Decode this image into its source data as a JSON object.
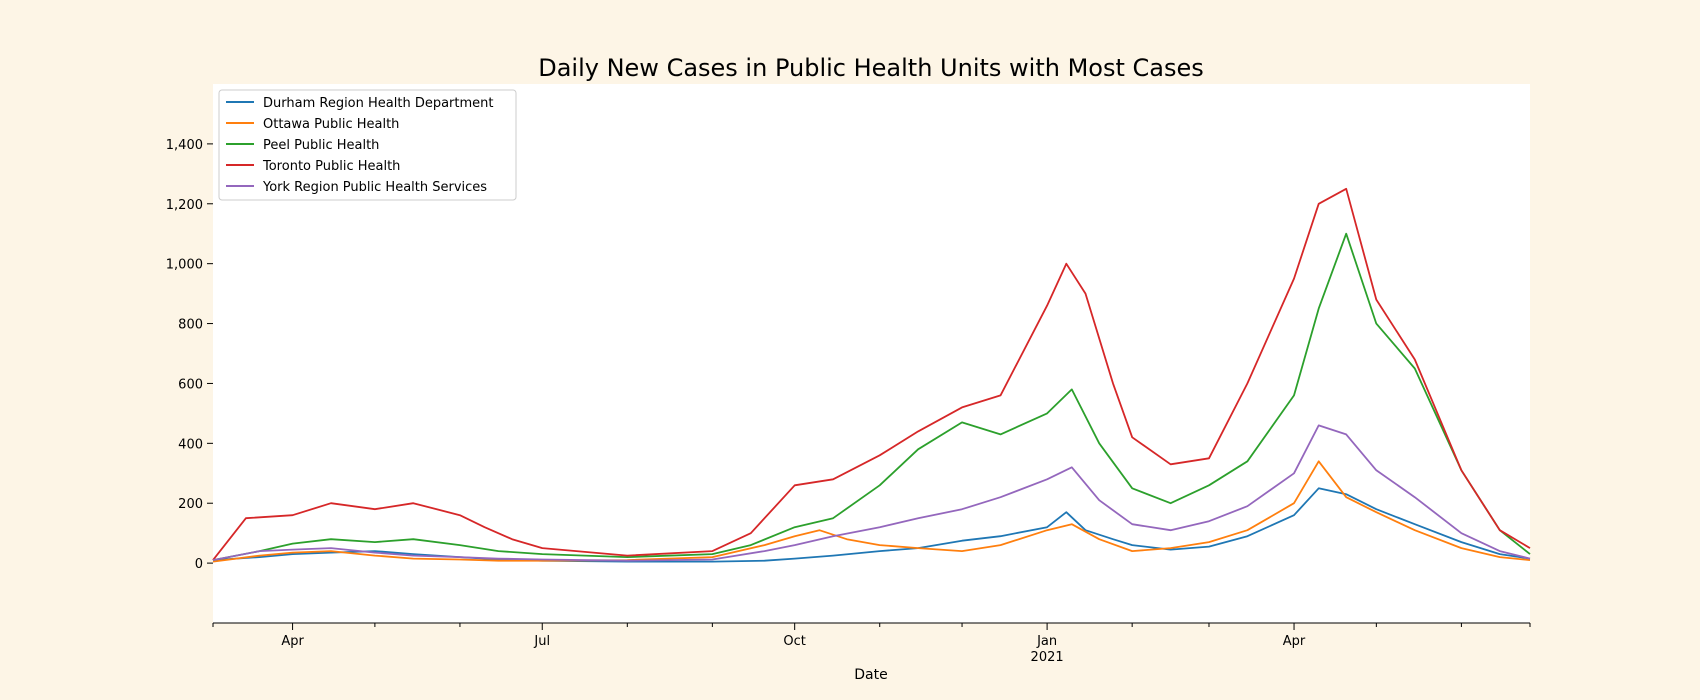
{
  "chart_data": {
    "type": "line",
    "title": "Daily New Cases in Public Health Units with Most Cases",
    "xlabel": "Date",
    "ylabel": "",
    "x_range": [
      "2020-03-03",
      "2021-06-26"
    ],
    "ylim": [
      -200,
      1600
    ],
    "yticks": [
      0,
      200,
      400,
      600,
      800,
      1000,
      1200,
      1400
    ],
    "ytick_labels": [
      "0",
      "200",
      "400",
      "600",
      "800",
      "1,000",
      "1,200",
      "1,400"
    ],
    "xticks_major": [
      {
        "date": "2020-04-01",
        "label": "Apr",
        "sublabel": ""
      },
      {
        "date": "2020-07-01",
        "label": "Jul",
        "sublabel": ""
      },
      {
        "date": "2020-10-01",
        "label": "Oct",
        "sublabel": ""
      },
      {
        "date": "2021-01-01",
        "label": "Jan",
        "sublabel": "2021"
      },
      {
        "date": "2021-04-01",
        "label": "Apr",
        "sublabel": ""
      }
    ],
    "xticks_minor": [
      "2020-03-03",
      "2020-05-01",
      "2020-06-01",
      "2020-08-01",
      "2020-09-01",
      "2020-11-01",
      "2020-12-01",
      "2021-02-01",
      "2021-03-01",
      "2021-05-01",
      "2021-06-01",
      "2021-06-26"
    ],
    "grid": false,
    "legend_position": "top-left",
    "series": [
      {
        "name": "Durham Region Health Department",
        "color": "#1f77b4",
        "points": [
          [
            "2020-03-03",
            10
          ],
          [
            "2020-03-20",
            20
          ],
          [
            "2020-04-01",
            30
          ],
          [
            "2020-04-15",
            35
          ],
          [
            "2020-05-01",
            40
          ],
          [
            "2020-05-15",
            30
          ],
          [
            "2020-06-01",
            20
          ],
          [
            "2020-06-15",
            12
          ],
          [
            "2020-07-01",
            8
          ],
          [
            "2020-08-01",
            5
          ],
          [
            "2020-09-01",
            5
          ],
          [
            "2020-09-20",
            8
          ],
          [
            "2020-10-01",
            15
          ],
          [
            "2020-10-15",
            25
          ],
          [
            "2020-11-01",
            40
          ],
          [
            "2020-11-15",
            50
          ],
          [
            "2020-12-01",
            75
          ],
          [
            "2020-12-15",
            90
          ],
          [
            "2021-01-01",
            120
          ],
          [
            "2021-01-08",
            170
          ],
          [
            "2021-01-15",
            110
          ],
          [
            "2021-01-25",
            80
          ],
          [
            "2021-02-01",
            60
          ],
          [
            "2021-02-15",
            45
          ],
          [
            "2021-03-01",
            55
          ],
          [
            "2021-03-15",
            90
          ],
          [
            "2021-04-01",
            160
          ],
          [
            "2021-04-10",
            250
          ],
          [
            "2021-04-20",
            230
          ],
          [
            "2021-05-01",
            180
          ],
          [
            "2021-05-15",
            130
          ],
          [
            "2021-06-01",
            70
          ],
          [
            "2021-06-15",
            30
          ],
          [
            "2021-06-26",
            15
          ]
        ]
      },
      {
        "name": "Ottawa Public Health",
        "color": "#ff7f0e",
        "points": [
          [
            "2020-03-03",
            5
          ],
          [
            "2020-03-20",
            25
          ],
          [
            "2020-04-01",
            35
          ],
          [
            "2020-04-15",
            40
          ],
          [
            "2020-05-01",
            25
          ],
          [
            "2020-05-15",
            15
          ],
          [
            "2020-06-01",
            12
          ],
          [
            "2020-06-15",
            8
          ],
          [
            "2020-07-01",
            8
          ],
          [
            "2020-08-01",
            10
          ],
          [
            "2020-09-01",
            20
          ],
          [
            "2020-09-20",
            60
          ],
          [
            "2020-10-01",
            90
          ],
          [
            "2020-10-10",
            110
          ],
          [
            "2020-10-20",
            80
          ],
          [
            "2020-11-01",
            60
          ],
          [
            "2020-11-15",
            50
          ],
          [
            "2020-12-01",
            40
          ],
          [
            "2020-12-15",
            60
          ],
          [
            "2021-01-01",
            110
          ],
          [
            "2021-01-10",
            130
          ],
          [
            "2021-01-20",
            80
          ],
          [
            "2021-02-01",
            40
          ],
          [
            "2021-02-15",
            50
          ],
          [
            "2021-03-01",
            70
          ],
          [
            "2021-03-15",
            110
          ],
          [
            "2021-04-01",
            200
          ],
          [
            "2021-04-10",
            340
          ],
          [
            "2021-04-20",
            220
          ],
          [
            "2021-05-01",
            170
          ],
          [
            "2021-05-15",
            110
          ],
          [
            "2021-06-01",
            50
          ],
          [
            "2021-06-15",
            20
          ],
          [
            "2021-06-26",
            10
          ]
        ]
      },
      {
        "name": "Peel Public Health",
        "color": "#2ca02c",
        "points": [
          [
            "2020-03-03",
            10
          ],
          [
            "2020-03-20",
            40
          ],
          [
            "2020-04-01",
            65
          ],
          [
            "2020-04-15",
            80
          ],
          [
            "2020-05-01",
            70
          ],
          [
            "2020-05-15",
            80
          ],
          [
            "2020-06-01",
            60
          ],
          [
            "2020-06-15",
            40
          ],
          [
            "2020-07-01",
            30
          ],
          [
            "2020-08-01",
            20
          ],
          [
            "2020-09-01",
            30
          ],
          [
            "2020-09-15",
            60
          ],
          [
            "2020-10-01",
            120
          ],
          [
            "2020-10-15",
            150
          ],
          [
            "2020-11-01",
            260
          ],
          [
            "2020-11-15",
            380
          ],
          [
            "2020-12-01",
            470
          ],
          [
            "2020-12-15",
            430
          ],
          [
            "2021-01-01",
            500
          ],
          [
            "2021-01-10",
            580
          ],
          [
            "2021-01-20",
            400
          ],
          [
            "2021-02-01",
            250
          ],
          [
            "2021-02-15",
            200
          ],
          [
            "2021-03-01",
            260
          ],
          [
            "2021-03-15",
            340
          ],
          [
            "2021-04-01",
            560
          ],
          [
            "2021-04-10",
            850
          ],
          [
            "2021-04-20",
            1100
          ],
          [
            "2021-05-01",
            800
          ],
          [
            "2021-05-15",
            650
          ],
          [
            "2021-06-01",
            310
          ],
          [
            "2021-06-15",
            110
          ],
          [
            "2021-06-26",
            30
          ]
        ]
      },
      {
        "name": "Toronto Public Health",
        "color": "#d62728",
        "points": [
          [
            "2020-03-03",
            10
          ],
          [
            "2020-03-15",
            150
          ],
          [
            "2020-04-01",
            160
          ],
          [
            "2020-04-15",
            200
          ],
          [
            "2020-05-01",
            180
          ],
          [
            "2020-05-15",
            200
          ],
          [
            "2020-06-01",
            160
          ],
          [
            "2020-06-10",
            120
          ],
          [
            "2020-06-20",
            80
          ],
          [
            "2020-07-01",
            50
          ],
          [
            "2020-08-01",
            25
          ],
          [
            "2020-09-01",
            40
          ],
          [
            "2020-09-15",
            100
          ],
          [
            "2020-10-01",
            260
          ],
          [
            "2020-10-15",
            280
          ],
          [
            "2020-11-01",
            360
          ],
          [
            "2020-11-15",
            440
          ],
          [
            "2020-12-01",
            520
          ],
          [
            "2020-12-15",
            560
          ],
          [
            "2021-01-01",
            860
          ],
          [
            "2021-01-08",
            1000
          ],
          [
            "2021-01-15",
            900
          ],
          [
            "2021-01-25",
            600
          ],
          [
            "2021-02-01",
            420
          ],
          [
            "2021-02-15",
            330
          ],
          [
            "2021-03-01",
            350
          ],
          [
            "2021-03-15",
            600
          ],
          [
            "2021-04-01",
            950
          ],
          [
            "2021-04-10",
            1200
          ],
          [
            "2021-04-20",
            1250
          ],
          [
            "2021-05-01",
            880
          ],
          [
            "2021-05-15",
            680
          ],
          [
            "2021-06-01",
            310
          ],
          [
            "2021-06-15",
            110
          ],
          [
            "2021-06-26",
            50
          ]
        ]
      },
      {
        "name": "York Region Public Health Services",
        "color": "#9467bd",
        "points": [
          [
            "2020-03-03",
            10
          ],
          [
            "2020-03-20",
            40
          ],
          [
            "2020-04-01",
            45
          ],
          [
            "2020-04-15",
            50
          ],
          [
            "2020-05-01",
            35
          ],
          [
            "2020-05-15",
            25
          ],
          [
            "2020-06-01",
            20
          ],
          [
            "2020-06-15",
            15
          ],
          [
            "2020-07-01",
            12
          ],
          [
            "2020-08-01",
            8
          ],
          [
            "2020-09-01",
            12
          ],
          [
            "2020-09-20",
            40
          ],
          [
            "2020-10-01",
            60
          ],
          [
            "2020-10-15",
            90
          ],
          [
            "2020-11-01",
            120
          ],
          [
            "2020-11-15",
            150
          ],
          [
            "2020-12-01",
            180
          ],
          [
            "2020-12-15",
            220
          ],
          [
            "2021-01-01",
            280
          ],
          [
            "2021-01-10",
            320
          ],
          [
            "2021-01-20",
            210
          ],
          [
            "2021-02-01",
            130
          ],
          [
            "2021-02-15",
            110
          ],
          [
            "2021-03-01",
            140
          ],
          [
            "2021-03-15",
            190
          ],
          [
            "2021-04-01",
            300
          ],
          [
            "2021-04-10",
            460
          ],
          [
            "2021-04-20",
            430
          ],
          [
            "2021-05-01",
            310
          ],
          [
            "2021-05-15",
            220
          ],
          [
            "2021-06-01",
            100
          ],
          [
            "2021-06-15",
            40
          ],
          [
            "2021-06-26",
            15
          ]
        ]
      }
    ]
  }
}
